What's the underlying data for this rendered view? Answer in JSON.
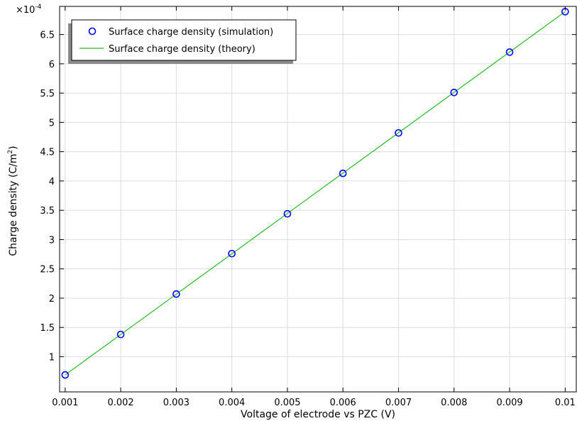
{
  "chart_data": {
    "type": "scatter",
    "multiplier_label": "×10",
    "multiplier_exponent": "-4",
    "xlabel": "Voltage of electrode vs PZC (V)",
    "ylabel": "Charge density (C/m",
    "ylabel_sup": "2",
    "ylabel_close": ")",
    "xlim": [
      0.0009,
      0.0102
    ],
    "ylim": [
      0.4,
      6.98
    ],
    "y_scale_factor": 0.0001,
    "x_ticks": [
      0.001,
      0.002,
      0.003,
      0.004,
      0.005,
      0.006,
      0.007,
      0.008,
      0.009,
      0.01
    ],
    "x_tick_labels": [
      "0.001",
      "0.002",
      "0.003",
      "0.004",
      "0.005",
      "0.006",
      "0.007",
      "0.008",
      "0.009",
      "0.01"
    ],
    "y_ticks": [
      1,
      1.5,
      2,
      2.5,
      3,
      3.5,
      4,
      4.5,
      5,
      5.5,
      6,
      6.5
    ],
    "y_tick_labels": [
      "1",
      "1.5",
      "2",
      "2.5",
      "3",
      "3.5",
      "4",
      "4.5",
      "5",
      "5.5",
      "6",
      "6.5"
    ],
    "grid": true,
    "legend_position": "top-left",
    "series": [
      {
        "name": "Surface charge density (simulation)",
        "style": "markers",
        "color": "#0000ff",
        "x": [
          0.001,
          0.002,
          0.003,
          0.004,
          0.005,
          0.006,
          0.007,
          0.008,
          0.009,
          0.01
        ],
        "y": [
          0.69,
          1.38,
          2.07,
          2.76,
          3.44,
          4.13,
          4.82,
          5.51,
          6.2,
          6.89
        ]
      },
      {
        "name": "Surface charge density (theory)",
        "style": "line",
        "color": "#22bb22",
        "x": [
          0.001,
          0.01
        ],
        "y": [
          0.69,
          6.89
        ]
      }
    ]
  }
}
